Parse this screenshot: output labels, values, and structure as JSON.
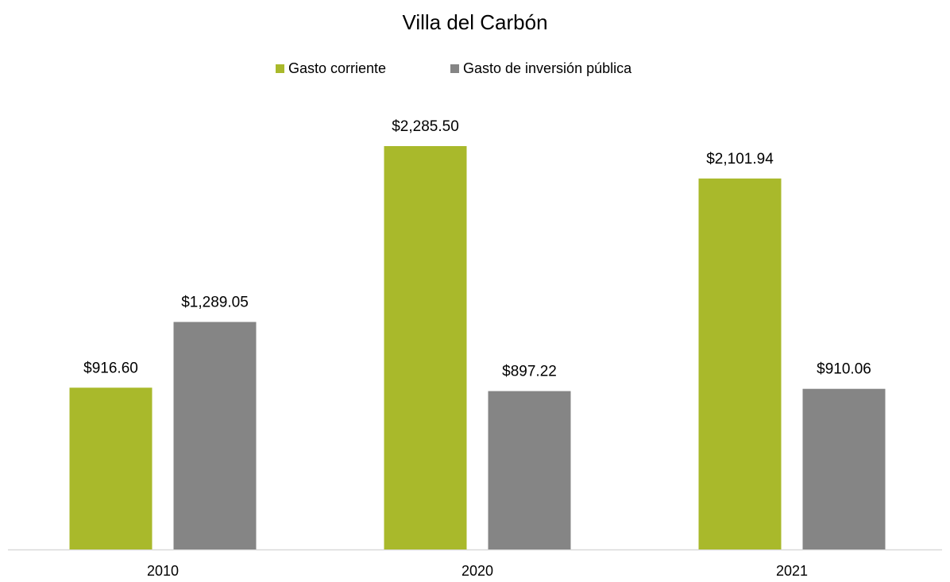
{
  "chart_data": {
    "type": "bar",
    "title": "Villa del Carbón",
    "categories": [
      "2010",
      "2020",
      "2021"
    ],
    "series": [
      {
        "name": "Gasto corriente",
        "color": "#a9b92b",
        "values": [
          916.6,
          2285.5,
          2101.94
        ],
        "value_labels": [
          "$916.60",
          "$2,285.50",
          "$2,101.94"
        ]
      },
      {
        "name": "Gasto de inversión pública",
        "color": "#858585",
        "values": [
          1289.05,
          897.22,
          910.06
        ],
        "value_labels": [
          "$1,289.05",
          "$897.22",
          "$910.06"
        ]
      }
    ],
    "legend": "top"
  }
}
